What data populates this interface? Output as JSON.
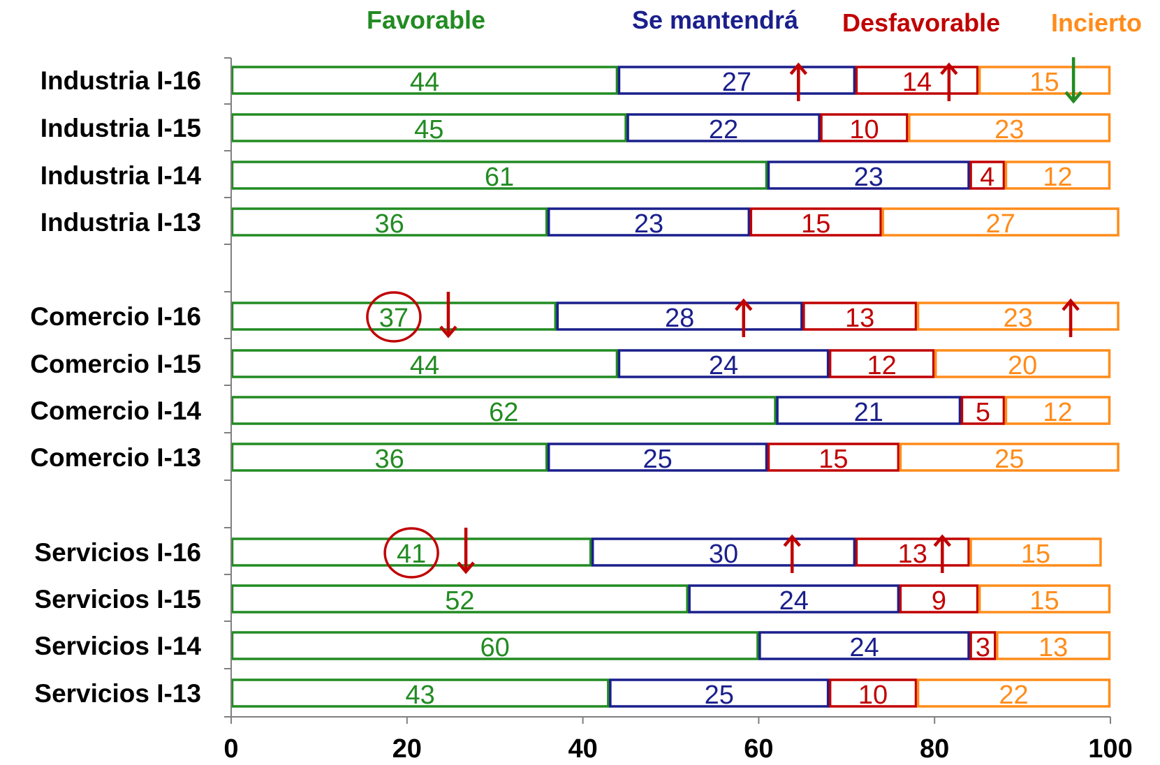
{
  "legend": {
    "favorable": "Favorable",
    "se_mantendra": "Se mantendrá",
    "desfavorable": "Desfavorable",
    "incierto": "Incierto"
  },
  "chart_data": {
    "type": "bar",
    "orientation": "horizontal",
    "stacked": true,
    "categories": [
      "Industria I-16",
      "Industria I-15",
      "Industria I-14",
      "Industria I-13",
      "Comercio I-16",
      "Comercio I-15",
      "Comercio I-14",
      "Comercio I-13",
      "Servicios I-16",
      "Servicios I-15",
      "Servicios I-14",
      "Servicios I-13"
    ],
    "series": [
      {
        "name": "Favorable",
        "color": "#228B22",
        "values": [
          44,
          45,
          61,
          36,
          37,
          44,
          62,
          36,
          41,
          52,
          60,
          43
        ]
      },
      {
        "name": "Se mantendrá",
        "color": "#1A1F8C",
        "values": [
          27,
          22,
          23,
          23,
          28,
          24,
          21,
          25,
          30,
          24,
          24,
          25
        ]
      },
      {
        "name": "Desfavorable",
        "color": "#C00000",
        "values": [
          14,
          10,
          4,
          15,
          13,
          12,
          5,
          15,
          13,
          9,
          3,
          10
        ]
      },
      {
        "name": "Incierto",
        "color": "#FF8C1A",
        "values": [
          15,
          23,
          12,
          27,
          23,
          20,
          12,
          25,
          15,
          15,
          13,
          22
        ]
      }
    ],
    "xlim": [
      0,
      100
    ],
    "xticks": [
      0,
      20,
      40,
      60,
      80,
      100
    ],
    "legend_position": "top",
    "grid": false,
    "annotations": {
      "up_arrows": [
        {
          "category": "Industria I-16",
          "series": "Se mantendrá",
          "color": "#C00000"
        },
        {
          "category": "Industria I-16",
          "series": "Desfavorable",
          "color": "#C00000"
        },
        {
          "category": "Comercio I-16",
          "series": "Se mantendrá",
          "color": "#C00000"
        },
        {
          "category": "Comercio I-16",
          "series": "Incierto",
          "color": "#C00000"
        },
        {
          "category": "Servicios I-16",
          "series": "Se mantendrá",
          "color": "#C00000"
        },
        {
          "category": "Servicios I-16",
          "series": "Desfavorable",
          "color": "#C00000"
        }
      ],
      "down_arrows": [
        {
          "category": "Industria I-16",
          "series": "Incierto",
          "color": "#228B22"
        },
        {
          "category": "Comercio I-16",
          "series": "Favorable",
          "color": "#C00000"
        },
        {
          "category": "Servicios I-16",
          "series": "Favorable",
          "color": "#C00000"
        }
      ],
      "circled": [
        {
          "category": "Comercio I-16",
          "series": "Favorable",
          "color": "#C00000"
        },
        {
          "category": "Servicios I-16",
          "series": "Favorable",
          "color": "#C00000"
        }
      ]
    }
  }
}
